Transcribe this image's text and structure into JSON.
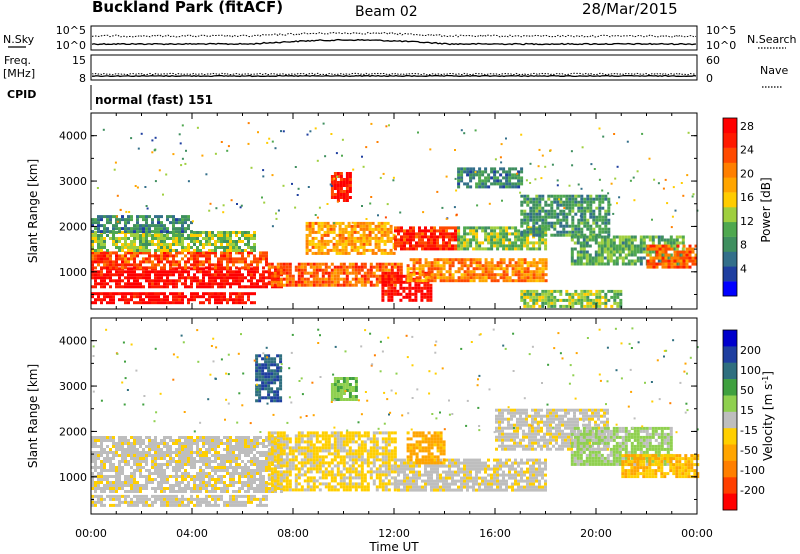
{
  "header": {
    "title": "Buckland Park (fitACF)",
    "beam": "Beam 02",
    "date": "28/Mar/2015"
  },
  "top_panels": {
    "nsky_label": "N.Sky",
    "nsearch_label": "N.Search",
    "freq_label_1": "Freq.",
    "freq_label_2": "[MHz]",
    "nave_label": "Nave",
    "cpid_label": "CPID",
    "cpid_text": "normal (fast) 151",
    "noise_left_ticks": [
      "10^5",
      "10^0"
    ],
    "noise_right_ticks": [
      "10^5",
      "10^0"
    ],
    "freq_left_ticks": [
      "15",
      "8"
    ],
    "freq_right_ticks": [
      "60",
      "0"
    ]
  },
  "chart_data": [
    {
      "type": "heatmap",
      "panel": "power",
      "ylabel": "Slant Range [km]",
      "ylim": [
        180,
        4500
      ],
      "yticks": [
        "1000",
        "2000",
        "3000",
        "4000"
      ],
      "xlim": [
        "00:00",
        "24:00"
      ],
      "colorbar": {
        "label": "Power [dB]",
        "ticks": [
          "4",
          "8",
          "12",
          "16",
          "20",
          "24",
          "28"
        ],
        "colors": [
          "#0000ff",
          "#1f3fa0",
          "#336f8a",
          "#3f8f5f",
          "#4fa84f",
          "#9fcf3f",
          "#ffcc00",
          "#ffa500",
          "#ff7f00",
          "#ff4a00",
          "#ff1a00",
          "#ff0000"
        ]
      },
      "regions": [
        {
          "t": [
            0.0,
            7.5
          ],
          "r": [
            700,
            1100
          ],
          "level": 30
        },
        {
          "t": [
            0.0,
            7.0
          ],
          "r": [
            1100,
            1450
          ],
          "level": 25
        },
        {
          "t": [
            0.0,
            6.5
          ],
          "r": [
            1450,
            1900
          ],
          "level": 14
        },
        {
          "t": [
            0.0,
            4.0
          ],
          "r": [
            1900,
            2250
          ],
          "level": 9
        },
        {
          "t": [
            0.0,
            6.5
          ],
          "r": [
            350,
            550
          ],
          "level": 30
        },
        {
          "t": [
            7.0,
            12.3
          ],
          "r": [
            700,
            1200
          ],
          "level": 24
        },
        {
          "t": [
            8.5,
            12.0
          ],
          "r": [
            1400,
            2100
          ],
          "level": 20
        },
        {
          "t": [
            12.0,
            14.5
          ],
          "r": [
            1500,
            2000
          ],
          "level": 27
        },
        {
          "t": [
            11.5,
            13.5
          ],
          "r": [
            400,
            1000
          ],
          "level": 30
        },
        {
          "t": [
            12.5,
            18.0
          ],
          "r": [
            800,
            1300
          ],
          "level": 22
        },
        {
          "t": [
            14.5,
            18.0
          ],
          "r": [
            1500,
            2000
          ],
          "level": 14
        },
        {
          "t": [
            17.0,
            20.5
          ],
          "r": [
            1800,
            2700
          ],
          "level": 10
        },
        {
          "t": [
            19.0,
            23.5
          ],
          "r": [
            1200,
            1800
          ],
          "level": 12
        },
        {
          "t": [
            22.0,
            24.0
          ],
          "r": [
            1100,
            1600
          ],
          "level": 24
        },
        {
          "t": [
            9.5,
            10.3
          ],
          "r": [
            2600,
            3200
          ],
          "level": 28
        },
        {
          "t": [
            14.5,
            17.0
          ],
          "r": [
            2900,
            3300
          ],
          "level": 9
        },
        {
          "t": [
            17.0,
            21.0
          ],
          "r": [
            250,
            600
          ],
          "level": 14
        }
      ]
    },
    {
      "type": "heatmap",
      "panel": "velocity",
      "ylabel": "Slant Range [km]",
      "xlabel": "Time UT",
      "ylim": [
        180,
        4500
      ],
      "yticks": [
        "1000",
        "2000",
        "3000",
        "4000"
      ],
      "xlim": [
        "00:00",
        "24:00"
      ],
      "xticks": [
        "00:00",
        "04:00",
        "08:00",
        "12:00",
        "16:00",
        "20:00",
        "00:00"
      ],
      "colorbar": {
        "label": "Velocity [m s-1]",
        "ticks": [
          "200",
          "100",
          "50",
          "15",
          "-15",
          "-50",
          "-100",
          "-200"
        ],
        "colors": [
          "#0000cc",
          "#1f3fa0",
          "#2f6f7f",
          "#3fa03f",
          "#8fd04f",
          "#bebebe",
          "#ffcf00",
          "#ffa500",
          "#ff7f00",
          "#ff3f00",
          "#ff0000"
        ]
      },
      "regions": [
        {
          "t": [
            0.0,
            7.5
          ],
          "r": [
            700,
            1900
          ],
          "level": -10
        },
        {
          "t": [
            0.0,
            7.0
          ],
          "r": [
            350,
            600
          ],
          "level": -10
        },
        {
          "t": [
            7.0,
            12.0
          ],
          "r": [
            700,
            2000
          ],
          "level": -30
        },
        {
          "t": [
            12.0,
            18.0
          ],
          "r": [
            700,
            1400
          ],
          "level": -10
        },
        {
          "t": [
            16.0,
            20.5
          ],
          "r": [
            1600,
            2500
          ],
          "level": -10
        },
        {
          "t": [
            19.0,
            23.0
          ],
          "r": [
            1300,
            2100
          ],
          "level": 30
        },
        {
          "t": [
            21.0,
            24.0
          ],
          "r": [
            1000,
            1500
          ],
          "level": -60
        },
        {
          "t": [
            6.5,
            7.5
          ],
          "r": [
            2700,
            3700
          ],
          "level": 150
        },
        {
          "t": [
            9.5,
            10.5
          ],
          "r": [
            2700,
            3200
          ],
          "level": 60
        },
        {
          "t": [
            12.5,
            14.0
          ],
          "r": [
            1300,
            2000
          ],
          "level": -80
        }
      ]
    }
  ]
}
